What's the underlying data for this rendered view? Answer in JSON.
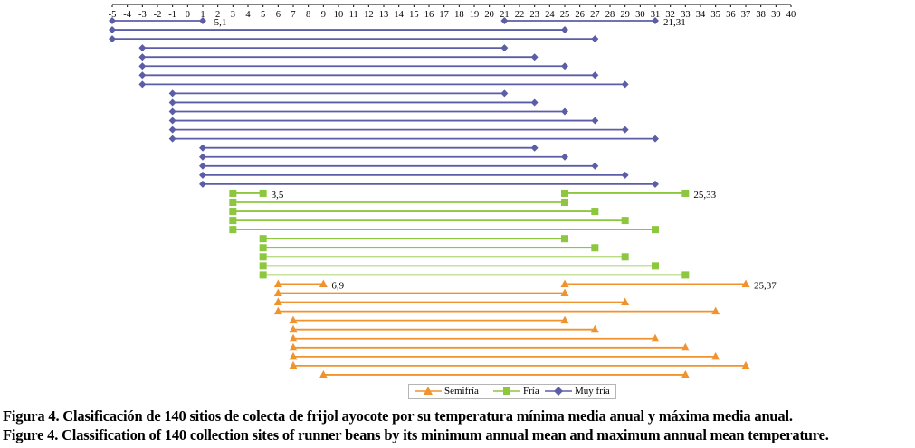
{
  "chart_data": {
    "type": "range-line",
    "x_axis": {
      "position": "top",
      "ticks": [
        -5,
        -4,
        -3,
        -2,
        -1,
        0,
        1,
        2,
        3,
        4,
        5,
        6,
        7,
        8,
        9,
        10,
        11,
        12,
        13,
        14,
        15,
        16,
        17,
        18,
        19,
        20,
        21,
        22,
        23,
        24,
        25,
        26,
        27,
        28,
        29,
        30,
        31,
        32,
        33,
        34,
        35,
        36,
        37,
        38,
        39,
        40
      ],
      "range": [
        -5,
        40
      ]
    },
    "legend": {
      "placement": "bottom",
      "entries": [
        {
          "name": "Semifría",
          "marker": "triangle",
          "color": "#F0932F"
        },
        {
          "name": "Fría",
          "marker": "square",
          "color": "#8DC63F"
        },
        {
          "name": "Muy fría",
          "marker": "diamond",
          "color": "#5B5EA6"
        }
      ]
    },
    "series": [
      {
        "name": "Muy fría",
        "color": "#5B5EA6",
        "marker": "diamond",
        "rows": [
          [
            [
              -5,
              1
            ],
            [
              21,
              31
            ]
          ],
          [
            [
              -5,
              25
            ]
          ],
          [
            [
              -5,
              27
            ]
          ],
          [
            [
              -3,
              21
            ]
          ],
          [
            [
              -3,
              23
            ]
          ],
          [
            [
              -3,
              25
            ]
          ],
          [
            [
              -3,
              27
            ]
          ],
          [
            [
              -3,
              29
            ]
          ],
          [
            [
              -1,
              21
            ]
          ],
          [
            [
              -1,
              23
            ]
          ],
          [
            [
              -1,
              25
            ]
          ],
          [
            [
              -1,
              27
            ]
          ],
          [
            [
              -1,
              29
            ]
          ],
          [
            [
              -1,
              31
            ]
          ],
          [
            [
              1,
              23
            ]
          ],
          [
            [
              1,
              25
            ]
          ],
          [
            [
              1,
              27
            ]
          ],
          [
            [
              1,
              29
            ]
          ],
          [
            [
              1,
              31
            ]
          ]
        ],
        "labels": [
          {
            "text": "-5,1",
            "row": 0,
            "x": 1
          },
          {
            "text": "21,31",
            "row": 0,
            "x": 31
          }
        ]
      },
      {
        "name": "Fría",
        "color": "#8DC63F",
        "marker": "square",
        "rows": [
          [
            [
              3,
              5
            ],
            [
              25,
              33
            ]
          ],
          [
            [
              3,
              25
            ]
          ],
          [
            [
              3,
              27
            ]
          ],
          [
            [
              3,
              29
            ]
          ],
          [
            [
              3,
              31
            ]
          ],
          [
            [
              5,
              25
            ]
          ],
          [
            [
              5,
              27
            ]
          ],
          [
            [
              5,
              29
            ]
          ],
          [
            [
              5,
              31
            ]
          ],
          [
            [
              5,
              33
            ]
          ]
        ],
        "labels": [
          {
            "text": "3,5",
            "row": 0,
            "x": 5
          },
          {
            "text": "25,33",
            "row": 0,
            "x": 33
          }
        ]
      },
      {
        "name": "Semifría",
        "color": "#F0932F",
        "marker": "triangle",
        "rows": [
          [
            [
              6,
              9
            ],
            [
              25,
              37
            ]
          ],
          [
            [
              6,
              25
            ]
          ],
          [
            [
              6,
              29
            ]
          ],
          [
            [
              6,
              35
            ]
          ],
          [
            [
              7,
              25
            ]
          ],
          [
            [
              7,
              27
            ]
          ],
          [
            [
              7,
              31
            ]
          ],
          [
            [
              7,
              33
            ]
          ],
          [
            [
              7,
              35
            ]
          ],
          [
            [
              7,
              37
            ]
          ],
          [
            [
              9,
              33
            ]
          ]
        ],
        "labels": [
          {
            "text": "6,9",
            "row": 0,
            "x": 9
          },
          {
            "text": "25,37",
            "row": 0,
            "x": 37
          }
        ]
      }
    ]
  },
  "captions": {
    "es": "Figura 4. Clasificación de 140 sitios de colecta de frijol ayocote por su temperatura mínima media anual y máxima media anual.",
    "en": "Figure 4. Classification of 140 collection sites of runner beans by its minimum annual mean and maximum annual mean temperature."
  }
}
